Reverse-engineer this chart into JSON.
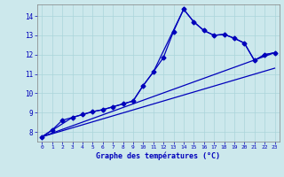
{
  "xlabel": "Graphe des températures (°C)",
  "background_color": "#cce8ec",
  "line_color": "#0000bb",
  "grid_color": "#aad4da",
  "xlim": [
    -0.5,
    23.5
  ],
  "ylim": [
    7.5,
    14.6
  ],
  "yticks": [
    8,
    9,
    10,
    11,
    12,
    13,
    14
  ],
  "xticks": [
    0,
    1,
    2,
    3,
    4,
    5,
    6,
    7,
    8,
    9,
    10,
    11,
    12,
    13,
    14,
    15,
    16,
    17,
    18,
    19,
    20,
    21,
    22,
    23
  ],
  "line1_x": [
    0,
    1,
    2,
    3,
    4,
    5,
    6,
    7,
    8,
    9,
    10,
    11,
    12,
    13,
    14,
    15,
    16,
    17,
    18,
    19,
    20,
    21,
    22,
    23
  ],
  "line1_y": [
    7.75,
    8.1,
    8.6,
    8.75,
    8.9,
    9.05,
    9.15,
    9.3,
    9.45,
    9.6,
    10.4,
    11.1,
    11.85,
    13.2,
    14.35,
    13.7,
    13.25,
    13.0,
    13.05,
    12.85,
    12.6,
    11.7,
    12.0,
    12.1
  ],
  "line2_x": [
    0,
    3,
    4,
    5,
    6,
    7,
    8,
    9,
    10,
    11,
    14,
    15,
    16,
    17,
    18,
    19,
    20,
    21,
    22,
    23
  ],
  "line2_y": [
    7.75,
    8.75,
    8.9,
    9.05,
    9.15,
    9.3,
    9.45,
    9.6,
    10.4,
    11.1,
    14.35,
    13.7,
    13.25,
    13.0,
    13.05,
    12.85,
    12.6,
    11.7,
    12.0,
    12.1
  ],
  "line3_x": [
    0,
    23
  ],
  "line3_y": [
    7.75,
    12.1
  ],
  "line4_x": [
    0,
    23
  ],
  "line4_y": [
    7.75,
    11.3
  ],
  "marker_size": 2.5,
  "linewidth": 0.9
}
